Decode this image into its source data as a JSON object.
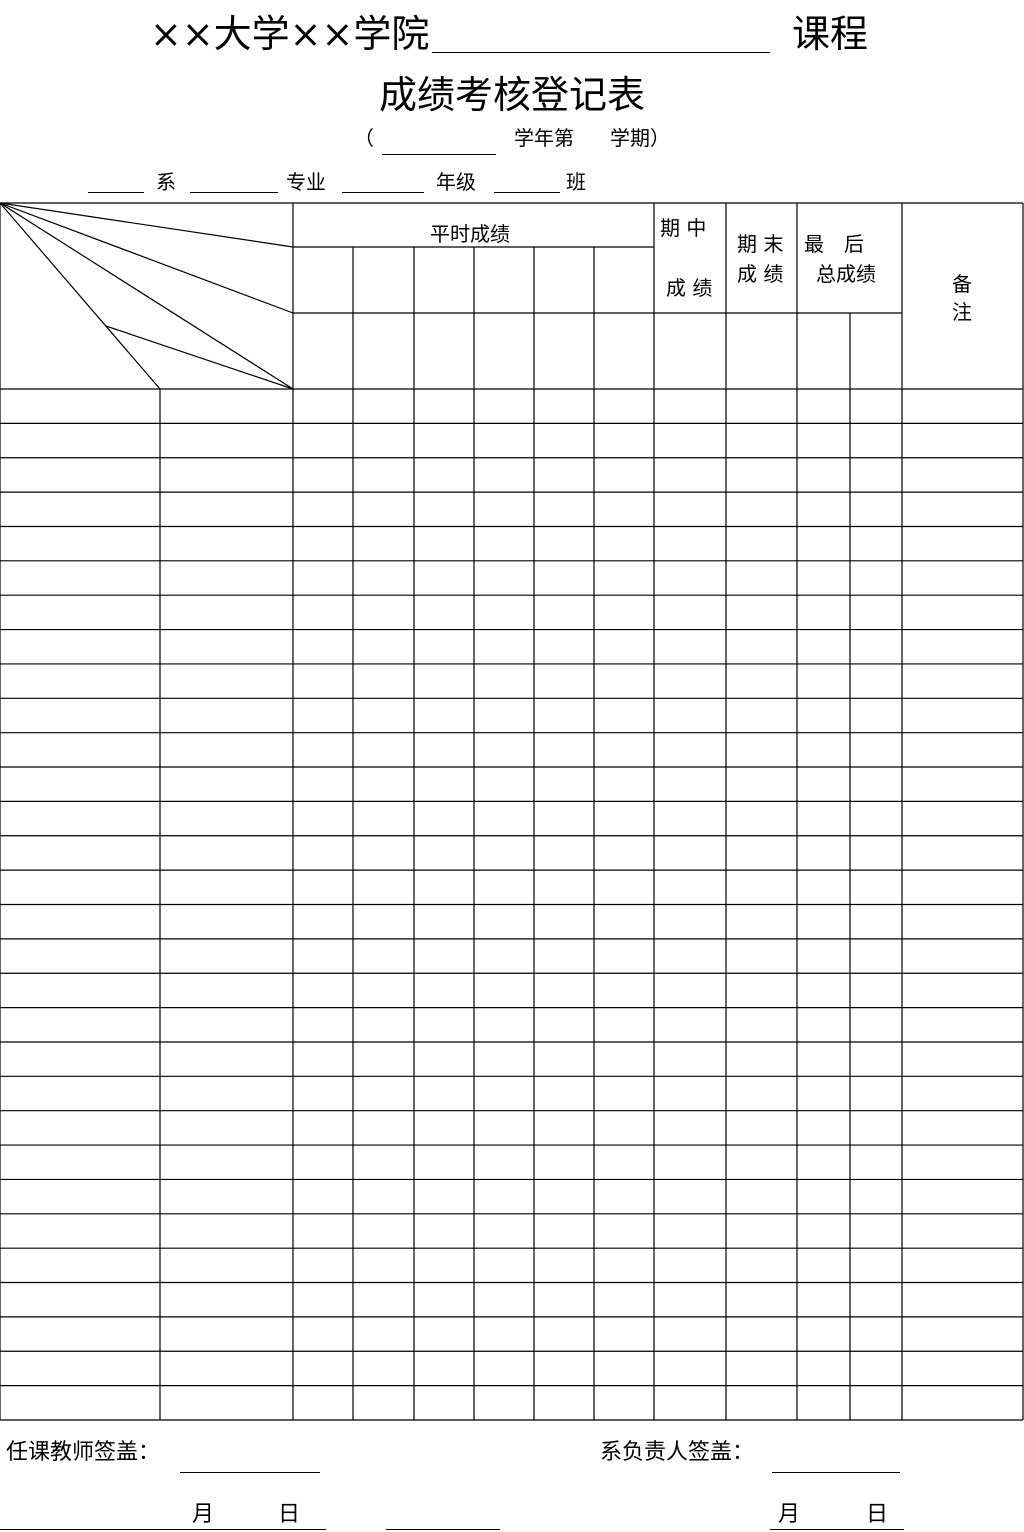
{
  "header": {
    "title_left": "××大学××学院",
    "title_right": "课程",
    "title_line2": "成绩考核登记表",
    "term_open": "（",
    "term_mid": "学年第",
    "term_end": "学期）",
    "dept_label": "系",
    "major_label": "专业",
    "grade_label": "年级",
    "class_label": "班"
  },
  "table": {
    "usual_score": "平时成绩",
    "midterm_1": "期 中",
    "midterm_2": "成 绩",
    "final_1": "期 末",
    "final_2": "成 绩",
    "total_1": "最　后",
    "total_2": "总成绩",
    "remark_1": "备",
    "remark_2": "注",
    "body_rows": 30
  },
  "footer": {
    "teacher_sign": "任课教师签盖：",
    "dept_head_sign": "系负责人签盖：",
    "month": "月",
    "day": "日"
  }
}
